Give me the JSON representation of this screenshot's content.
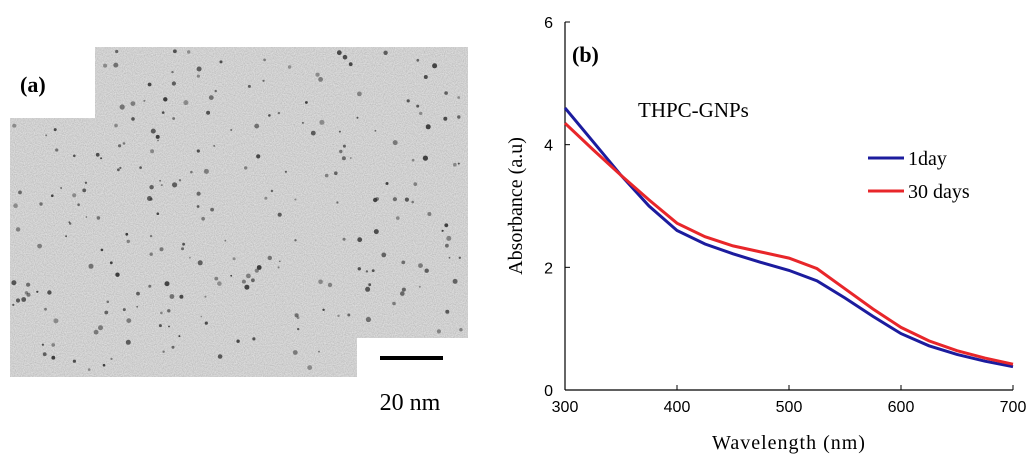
{
  "panel_a": {
    "label": "(a)",
    "scale_bar": "20 nm"
  },
  "chart_data": {
    "type": "line",
    "panel_label": "(b)",
    "annotation": "THPC-GNPs",
    "xlabel": "Wavelength (nm)",
    "ylabel": "Absorbance (a.u)",
    "x": [
      300,
      325,
      350,
      375,
      400,
      425,
      450,
      475,
      500,
      525,
      550,
      575,
      600,
      625,
      650,
      675,
      700
    ],
    "series": [
      {
        "name": "1day",
        "color": "#1c1c9e",
        "values": [
          4.6,
          4.05,
          3.5,
          3.0,
          2.6,
          2.38,
          2.22,
          2.08,
          1.95,
          1.78,
          1.5,
          1.2,
          0.92,
          0.72,
          0.58,
          0.47,
          0.38
        ]
      },
      {
        "name": "30 days",
        "color": "#e8262a",
        "values": [
          4.35,
          3.92,
          3.5,
          3.1,
          2.72,
          2.5,
          2.35,
          2.25,
          2.15,
          1.98,
          1.65,
          1.32,
          1.02,
          0.8,
          0.64,
          0.52,
          0.42
        ]
      }
    ],
    "xlim": [
      300,
      700
    ],
    "ylim": [
      0,
      6
    ],
    "xticks": [
      300,
      400,
      500,
      600,
      700
    ],
    "yticks": [
      0,
      2,
      4,
      6
    ],
    "legend": "upper right"
  }
}
